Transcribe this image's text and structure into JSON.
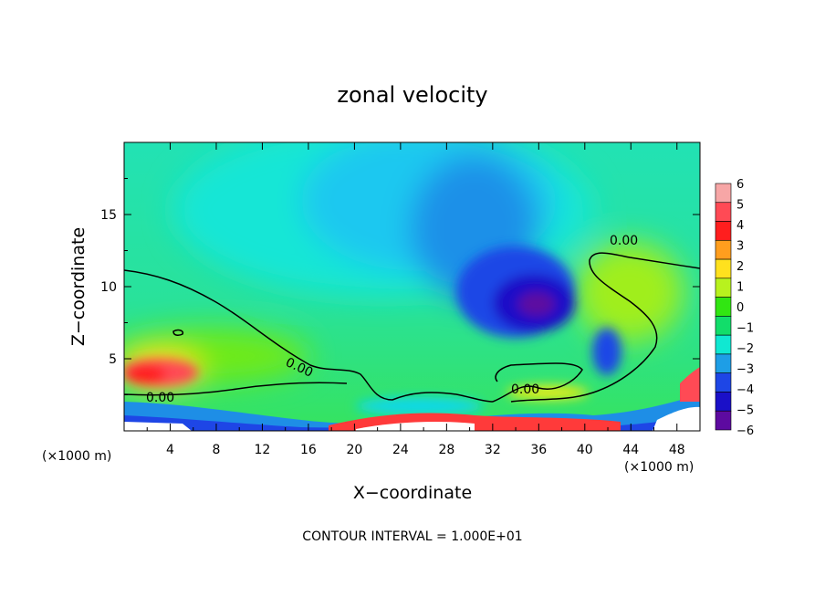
{
  "chart_data": {
    "type": "heatmap",
    "title": "zonal velocity",
    "xlabel": "X−coordinate",
    "ylabel": "Z−coordinate",
    "x_unit_left": "(×1000 m)",
    "x_unit_right": "(×1000 m)",
    "footer": "CONTOUR INTERVAL = 1.000E+01",
    "xlim": [
      0,
      50
    ],
    "ylim": [
      0,
      20
    ],
    "x_ticks": [
      "4",
      "8",
      "12",
      "16",
      "20",
      "24",
      "28",
      "32",
      "36",
      "40",
      "44",
      "48"
    ],
    "x_tick_values": [
      4,
      8,
      12,
      16,
      20,
      24,
      28,
      32,
      36,
      40,
      44,
      48
    ],
    "y_ticks": [
      "5",
      "10",
      "15"
    ],
    "y_tick_values": [
      5,
      10,
      15
    ],
    "colorbar": {
      "labels": [
        "6",
        "5",
        "4",
        "3",
        "2",
        "1",
        "0",
        "−1",
        "−2",
        "−3",
        "−4",
        "−5",
        "−6"
      ],
      "levels": [
        6,
        5,
        4,
        3,
        2,
        1,
        0,
        -1,
        -2,
        -3,
        -4,
        -5,
        -6
      ],
      "colors": [
        "#f7a6a6",
        "#ff4a55",
        "#ff1e1e",
        "#ff9e1e",
        "#ffe11e",
        "#b8f21e",
        "#31e612",
        "#12dd6a",
        "#10e8d2",
        "#1e9ee6",
        "#1e46e6",
        "#1a10c8",
        "#5d0aa0"
      ]
    },
    "contours": [
      {
        "label": "0.00",
        "level": 0
      }
    ],
    "field_features": [
      {
        "name": "negative core",
        "x": 36,
        "z": 8.8,
        "value": -6
      },
      {
        "name": "positive jet",
        "x": 3,
        "z": 4,
        "value": 5
      },
      {
        "name": "negative layer aloft",
        "x": 29,
        "z": 18,
        "value": -3
      }
    ]
  }
}
